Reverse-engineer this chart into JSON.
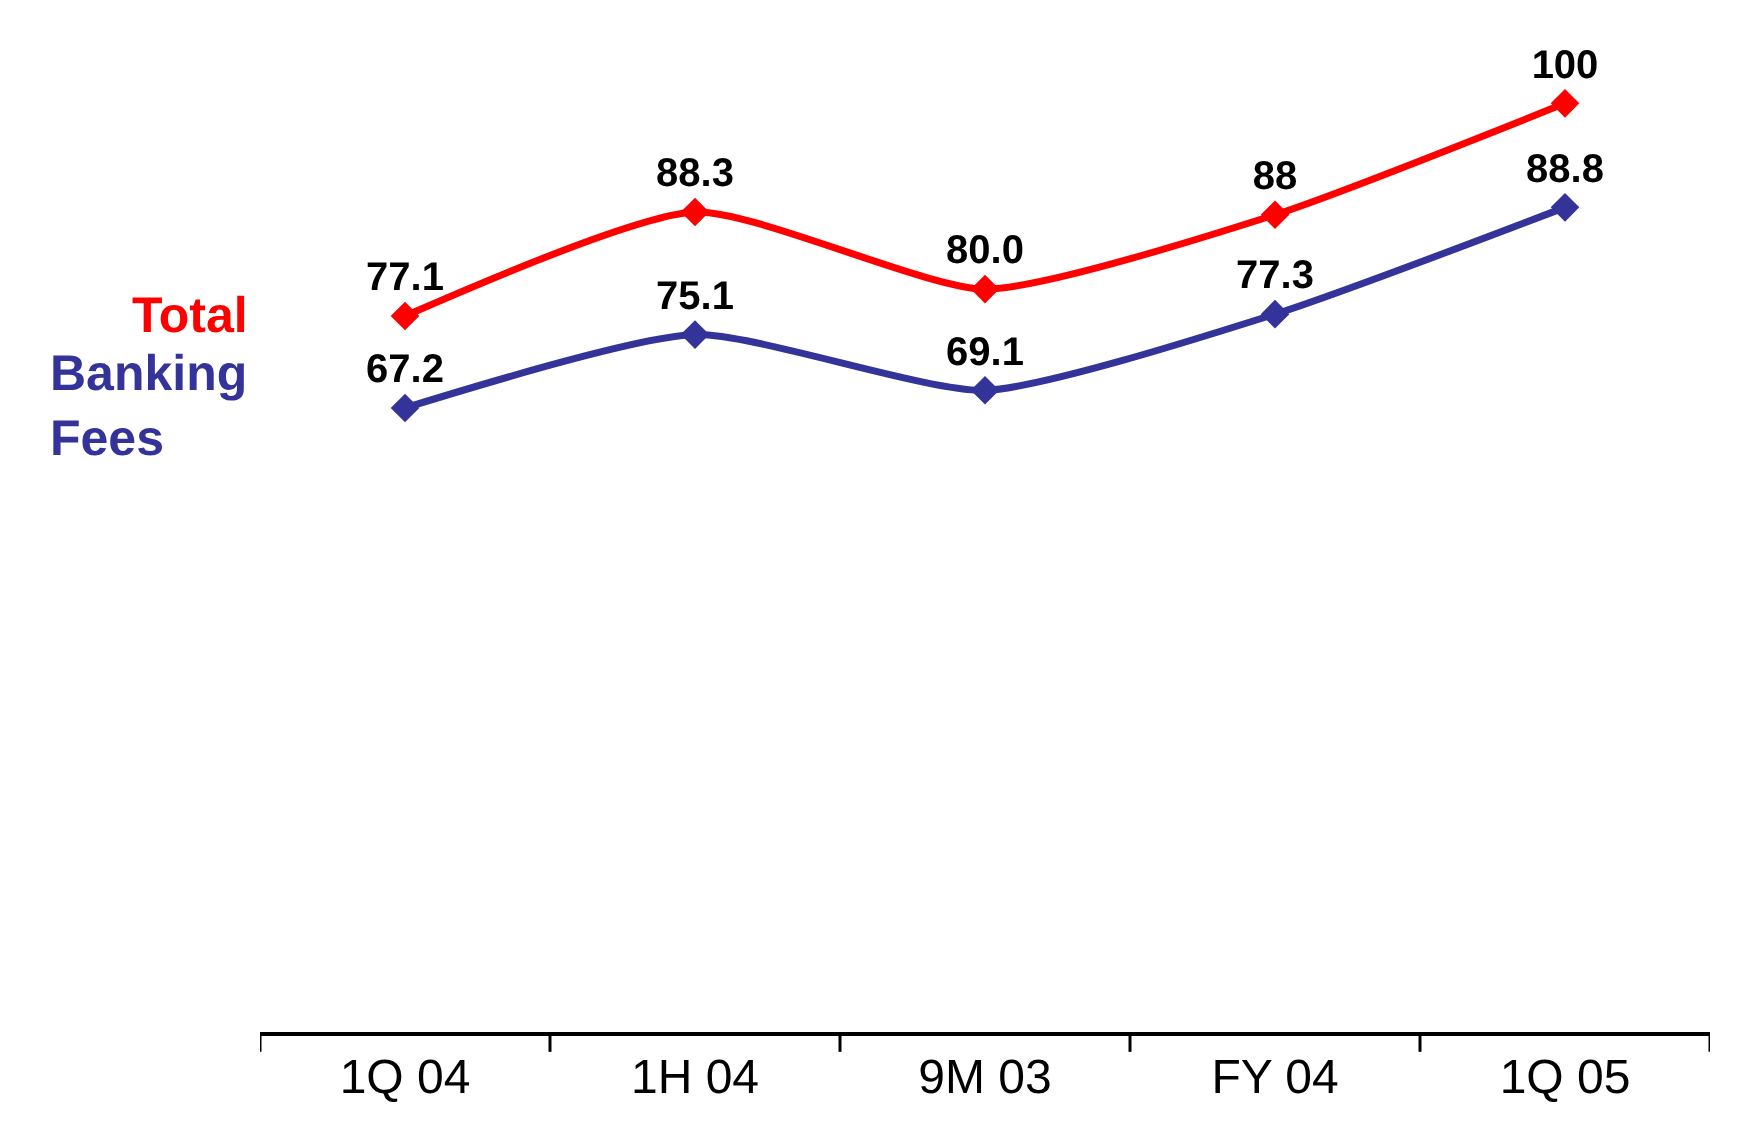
{
  "chart_data": {
    "type": "line",
    "categories": [
      "1Q 04",
      "1H 04",
      "9M 03",
      "FY 04",
      "1Q 05"
    ],
    "series": [
      {
        "name": "Total",
        "color": "#ff0000",
        "values": [
          77.1,
          88.3,
          80.0,
          88,
          100
        ],
        "value_labels": [
          "77.1",
          "88.3",
          "80.0",
          "88",
          "100"
        ]
      },
      {
        "name": "Banking Fees",
        "color": "#333399",
        "values": [
          67.2,
          75.1,
          69.1,
          77.3,
          88.8
        ],
        "value_labels": [
          "67.2",
          "75.1",
          "69.1",
          "77.3",
          "88.8"
        ]
      }
    ],
    "marker": "diamond",
    "line_style": "solid",
    "legend": false,
    "tick_labels": "x"
  }
}
